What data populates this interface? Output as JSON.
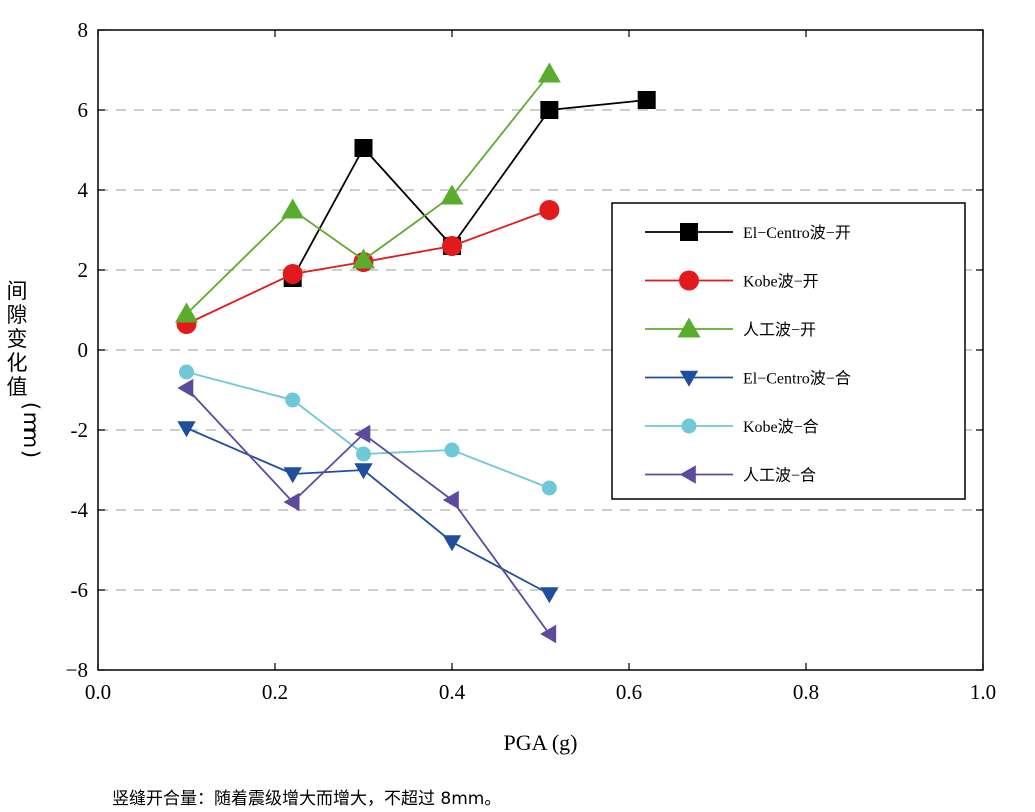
{
  "chart_data": {
    "type": "line",
    "xlabel": "PGA (g)",
    "ylabel": "间隙变化值(mm)",
    "xlim": [
      0.0,
      1.0
    ],
    "ylim": [
      -8,
      8
    ],
    "x_ticks": [
      "0.0",
      "0.2",
      "0.4",
      "0.6",
      "0.8",
      "1.0"
    ],
    "y_ticks": [
      "8",
      "6",
      "4",
      "2",
      "0",
      "-2",
      "-4",
      "-6",
      "−8"
    ],
    "grid": "horizontal dashed",
    "legend_position": "right",
    "series": [
      {
        "name": "El−Centro波−开",
        "color": "#000000",
        "marker": "square",
        "x": [
          0.22,
          0.3,
          0.4,
          0.51,
          0.62
        ],
        "y": [
          1.8,
          5.05,
          2.6,
          6.0,
          6.25
        ]
      },
      {
        "name": "Kobe波−开",
        "color": "#e31a1c",
        "marker": "circle",
        "x": [
          0.1,
          0.22,
          0.3,
          0.4,
          0.51
        ],
        "y": [
          0.65,
          1.9,
          2.2,
          2.6,
          3.5
        ]
      },
      {
        "name": "人工波−开",
        "color": "#5aac2e",
        "marker": "triangle-up",
        "x": [
          0.1,
          0.22,
          0.3,
          0.4,
          0.51
        ],
        "y": [
          0.9,
          3.5,
          2.25,
          3.85,
          6.9
        ]
      },
      {
        "name": "El−Centro波−合",
        "color": "#1f4e9e",
        "marker": "triangle-down",
        "x": [
          0.1,
          0.22,
          0.3,
          0.4,
          0.51
        ],
        "y": [
          -1.95,
          -3.1,
          -3.0,
          -4.8,
          -6.1
        ]
      },
      {
        "name": "Kobe波−合",
        "color": "#6fc8d8",
        "marker": "circle",
        "x": [
          0.1,
          0.22,
          0.3,
          0.4,
          0.51
        ],
        "y": [
          -0.55,
          -1.25,
          -2.6,
          -2.5,
          -3.45
        ]
      },
      {
        "name": "人工波−合",
        "color": "#5b4a9e",
        "marker": "triangle-left",
        "x": [
          0.1,
          0.22,
          0.3,
          0.4,
          0.51
        ],
        "y": [
          -0.95,
          -3.8,
          -2.1,
          -3.75,
          -7.1
        ]
      }
    ]
  },
  "caption": "竖缝开合量：随着震级增大而增大，不超过 8mm。"
}
